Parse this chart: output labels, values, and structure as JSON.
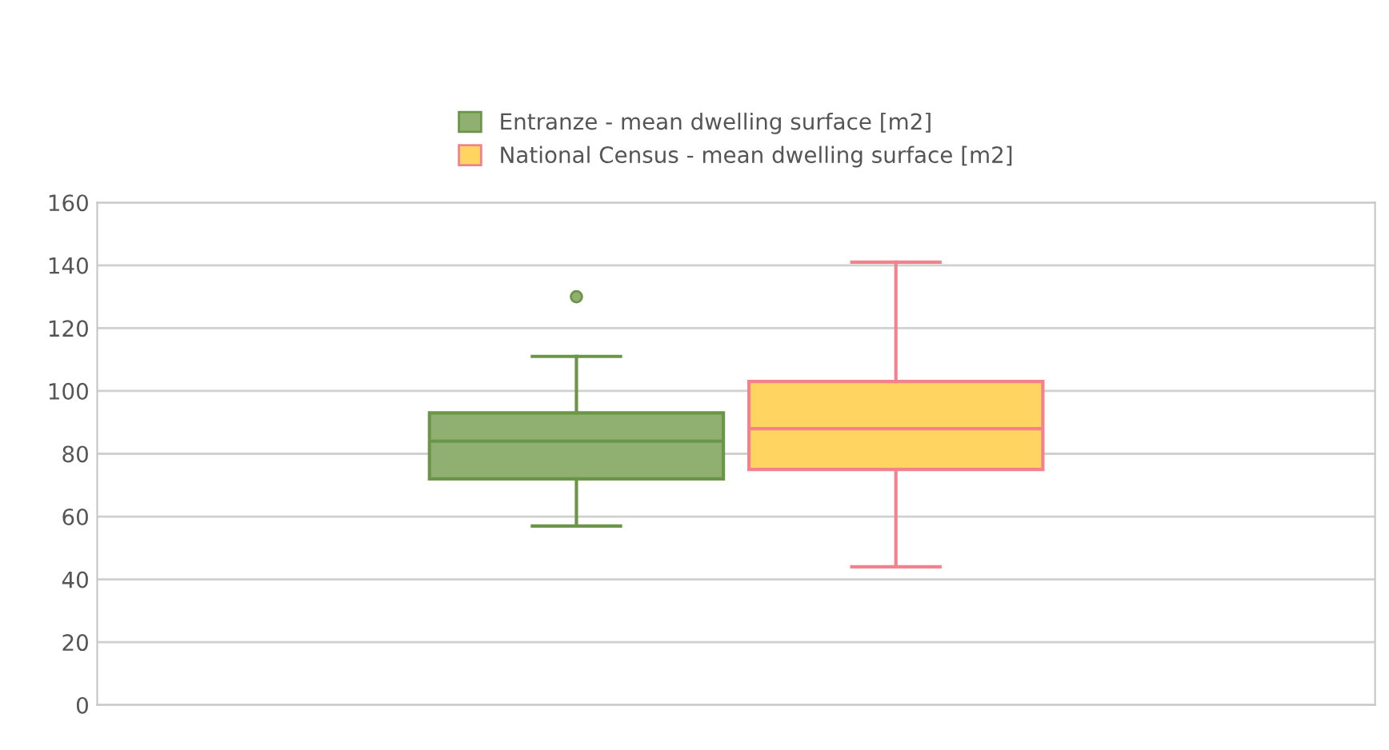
{
  "chart_data": {
    "type": "box",
    "categories": [
      null
    ],
    "series": [
      {
        "name": "Entranze - mean dwelling surface [m2]",
        "color": "#8fb070",
        "boxes": [
          {
            "low": 57,
            "q1": 72,
            "median": 84,
            "q3": 93,
            "high": 111,
            "outliers": [
              130
            ]
          }
        ]
      },
      {
        "name": "National Census - mean dwelling surface [m2]",
        "color": "#ffd460",
        "boxes": [
          {
            "low": 44,
            "q1": 75,
            "median": 88,
            "q3": 103,
            "high": 141
          }
        ]
      }
    ],
    "ylim": [
      0,
      160
    ],
    "yticks": [
      0,
      20,
      40,
      60,
      80,
      100,
      120,
      140,
      160
    ],
    "grid": "y",
    "legend": "top"
  }
}
